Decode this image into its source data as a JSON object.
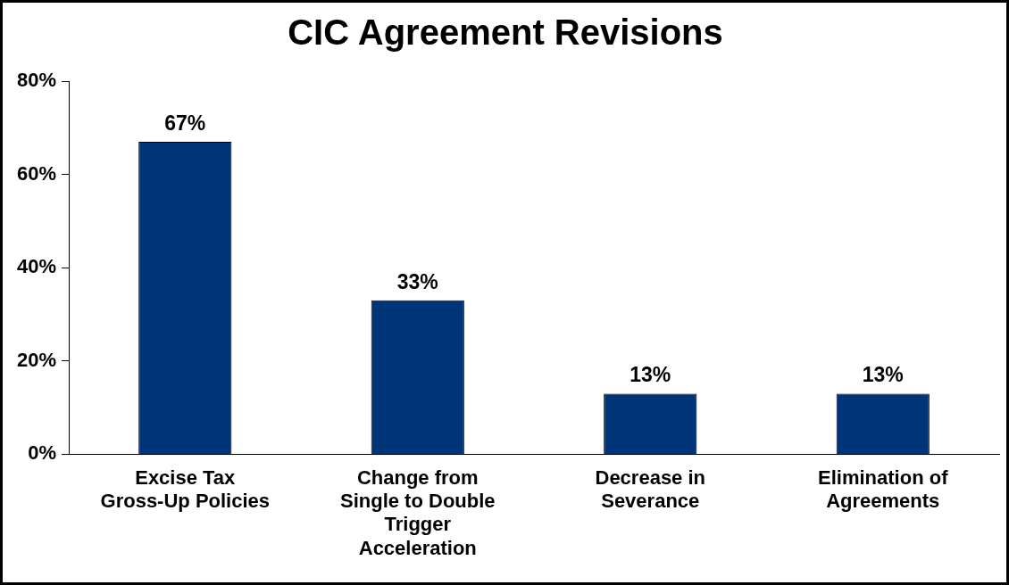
{
  "chart_data": {
    "type": "bar",
    "title": "CIC Agreement Revisions",
    "categories": [
      "Excise Tax Gross-Up Policies",
      "Change from Single to Double Trigger Acceleration",
      "Decrease in Severance",
      "Elimination of Agreements"
    ],
    "values": [
      67,
      33,
      13,
      13
    ],
    "color": "#003478",
    "ylim": [
      0,
      80
    ],
    "yticks": [
      {
        "value": 0,
        "label": "0%"
      },
      {
        "value": 20,
        "label": "20%"
      },
      {
        "value": 40,
        "label": "40%"
      },
      {
        "value": 60,
        "label": "60%"
      },
      {
        "value": 80,
        "label": "80%"
      }
    ],
    "value_labels": [
      "67%",
      "33%",
      "13%",
      "13%"
    ],
    "grid": false,
    "legend": false
  }
}
